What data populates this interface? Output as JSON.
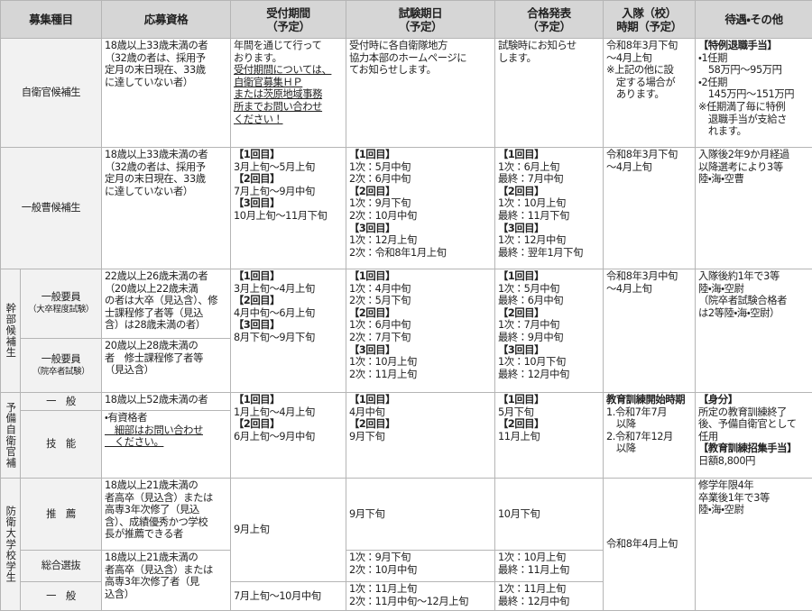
{
  "header": [
    [
      "募集種目"
    ],
    [
      "応募資格"
    ],
    [
      "受付期間",
      "（予定）"
    ],
    [
      "試験期日",
      "（予定）"
    ],
    [
      "合格発表",
      "（予定）"
    ],
    [
      "入隊（校）",
      "時期（予定）"
    ],
    [
      "待遇・その他"
    ]
  ],
  "rows": [
    {
      "label": "自衛官候補生",
      "qualification": [
        "18歳以上33歳未満の者",
        "（32歳の者は、採用予",
        "定月の末日現在、33歳",
        "に達していない者）"
      ],
      "reception": [
        "年間を通じて行って",
        "おります。",
        "受付期間については、",
        "自衛官募集ＨＰ",
        "または茨原地域事務",
        "所までお問い合わせ",
        "ください！"
      ],
      "exam": [
        "受付時に各自衛隊地方",
        "協力本部のホームページに",
        "てお知らせします。"
      ],
      "result": [
        "試験時にお知らせ",
        "します。"
      ],
      "enlistment": [
        "令和8年3月下旬",
        "～4月上旬",
        "※上記の他に設",
        "　定する場合が",
        "　あります。"
      ],
      "other": [
        "【特例退職手当】",
        "・1任期",
        "　58万円～95万円",
        "・2任期",
        "　145万円～151万円",
        "※任期満了毎に特例",
        "　退職手当が支給さ",
        "　れます。"
      ]
    },
    {
      "label": "一般曹候補生",
      "qualification": [
        "18歳以上33歳未満の者",
        "（32歳の者は、採用予",
        "定月の末日現在、33歳",
        "に達していない者）"
      ],
      "reception": [
        "【1回目】",
        "3月上旬～5月上旬",
        "【2回目】",
        "7月上旬～9月中旬",
        "【3回目】",
        "10月上旬～11月下旬"
      ],
      "exam": [
        "【1回目】",
        "1次：5月中旬",
        "2次：6月中旬",
        "【2回目】",
        "1次：9月下旬",
        "2次：10月中旬",
        "【3回目】",
        "1次：12月上旬",
        "2次：令和8年1月上旬"
      ],
      "result": [
        "【1回目】",
        "1次：6月上旬",
        "最終：7月中旬",
        "【2回目】",
        "1次：10月上旬",
        "最終：11月下旬",
        "【3回目】",
        "1次：12月中旬",
        "最終：翌年1月下旬"
      ],
      "enlistment": [
        "令和8年3月下旬",
        "～4月上旬"
      ],
      "other": [
        "入隊後2年9か月経過",
        "以降選考により3等",
        "陸・海・空曹"
      ]
    },
    {
      "group": "幹部候補生",
      "subrows": [
        {
          "label": [
            "一般要員",
            "（大卒程度試験）"
          ],
          "qualification": [
            "22歳以上26歳未満の者",
            "（20歳以上22歳未満",
            "の者は大卒（見込含）、修",
            "士課程修了者等（見込",
            "含）は28歳未満の者）"
          ]
        },
        {
          "label": [
            "一般要員",
            "（院卒者試験）"
          ],
          "qualification": [
            "20歳以上28歳未満の",
            "者　修士課程修了者等",
            "（見込含）"
          ]
        }
      ],
      "reception": [
        "【1回目】",
        "3月上旬～4月上旬",
        "【2回目】",
        "4月中旬～6月上旬",
        "【3回目】",
        "8月下旬～9月下旬"
      ],
      "exam": [
        "【1回目】",
        "1次：4月中旬",
        "2次：5月下旬",
        "【2回目】",
        "1次：6月中旬",
        "2次：7月下旬",
        "【3回目】",
        "1次：10月上旬",
        "2次：11月上旬"
      ],
      "result": [
        "【1回目】",
        "1次：5月中旬",
        "最終：6月中旬",
        "【2回目】",
        "1次：7月中旬",
        "最終：9月中旬",
        "【3回目】",
        "1次：10月下旬",
        "最終：12月中旬"
      ],
      "enlistment": [
        "令和8年3月中旬",
        "～4月上旬"
      ],
      "other": [
        "入隊後約1年で3等",
        "陸・海・空尉",
        "（院卒者試験合格者",
        "は2等陸・海・空尉）"
      ]
    },
    {
      "group": "予備自衛官補",
      "subrows": [
        {
          "label": "一　般",
          "qualification": [
            "18歳以上52歳未満の者"
          ]
        },
        {
          "label": "技　能",
          "qualification": [
            "・有資格者",
            "　細部はお問い合わせ",
            "　ください。"
          ]
        }
      ],
      "reception": [
        "【1回目】",
        "1月上旬～4月上旬",
        "【2回目】",
        "6月上旬～9月中旬"
      ],
      "exam": [
        "【1回目】",
        "4月中旬",
        "【2回目】",
        "9月下旬"
      ],
      "result": [
        "【1回目】",
        "5月下旬",
        "【2回目】",
        "11月上旬"
      ],
      "enlistment": [
        "教育訓練開始時期",
        "1.令和7年7月",
        "　以降",
        "2.令和7年12月",
        "　以降"
      ],
      "other": [
        "【身分】",
        "所定の教育訓練終了",
        "後、予備自衛官として",
        "任用",
        "【教育訓練招集手当】",
        "日額8,800円"
      ]
    },
    {
      "group": "防衛大学校学生",
      "subrows": [
        {
          "label": "推　薦",
          "qualification": [
            "18歳以上21歳未満の",
            "者高卒（見込含）または",
            "高専3年次修了（見込",
            "含）、成績優秀かつ学校",
            "長が推薦できる者"
          ],
          "reception": [
            "9月上旬"
          ],
          "exam": [
            "9月下旬"
          ],
          "result": [
            "10月下旬"
          ]
        },
        {
          "label": "総合選抜",
          "qualification": [
            "18歳以上21歳未満の",
            "者高卒（見込含）または",
            "高専3年次修了者（見",
            "込含）"
          ],
          "exam": [
            "1次：9月下旬",
            "2次：10月中旬"
          ],
          "result": [
            "1次：10月上旬",
            "最終：11月上旬"
          ]
        },
        {
          "label": "一　般",
          "reception": [
            "7月上旬～10月中旬"
          ],
          "exam": [
            "1次：11月上旬",
            "2次：11月中旬～12月上旬"
          ],
          "result": [
            "1次：11月上旬",
            "最終：12月中旬"
          ]
        }
      ],
      "enlistment": [
        "令和8年4月上旬"
      ],
      "other": [
        "修学年限4年",
        "卒業後1年で3等",
        "陸・海・空尉"
      ]
    }
  ]
}
